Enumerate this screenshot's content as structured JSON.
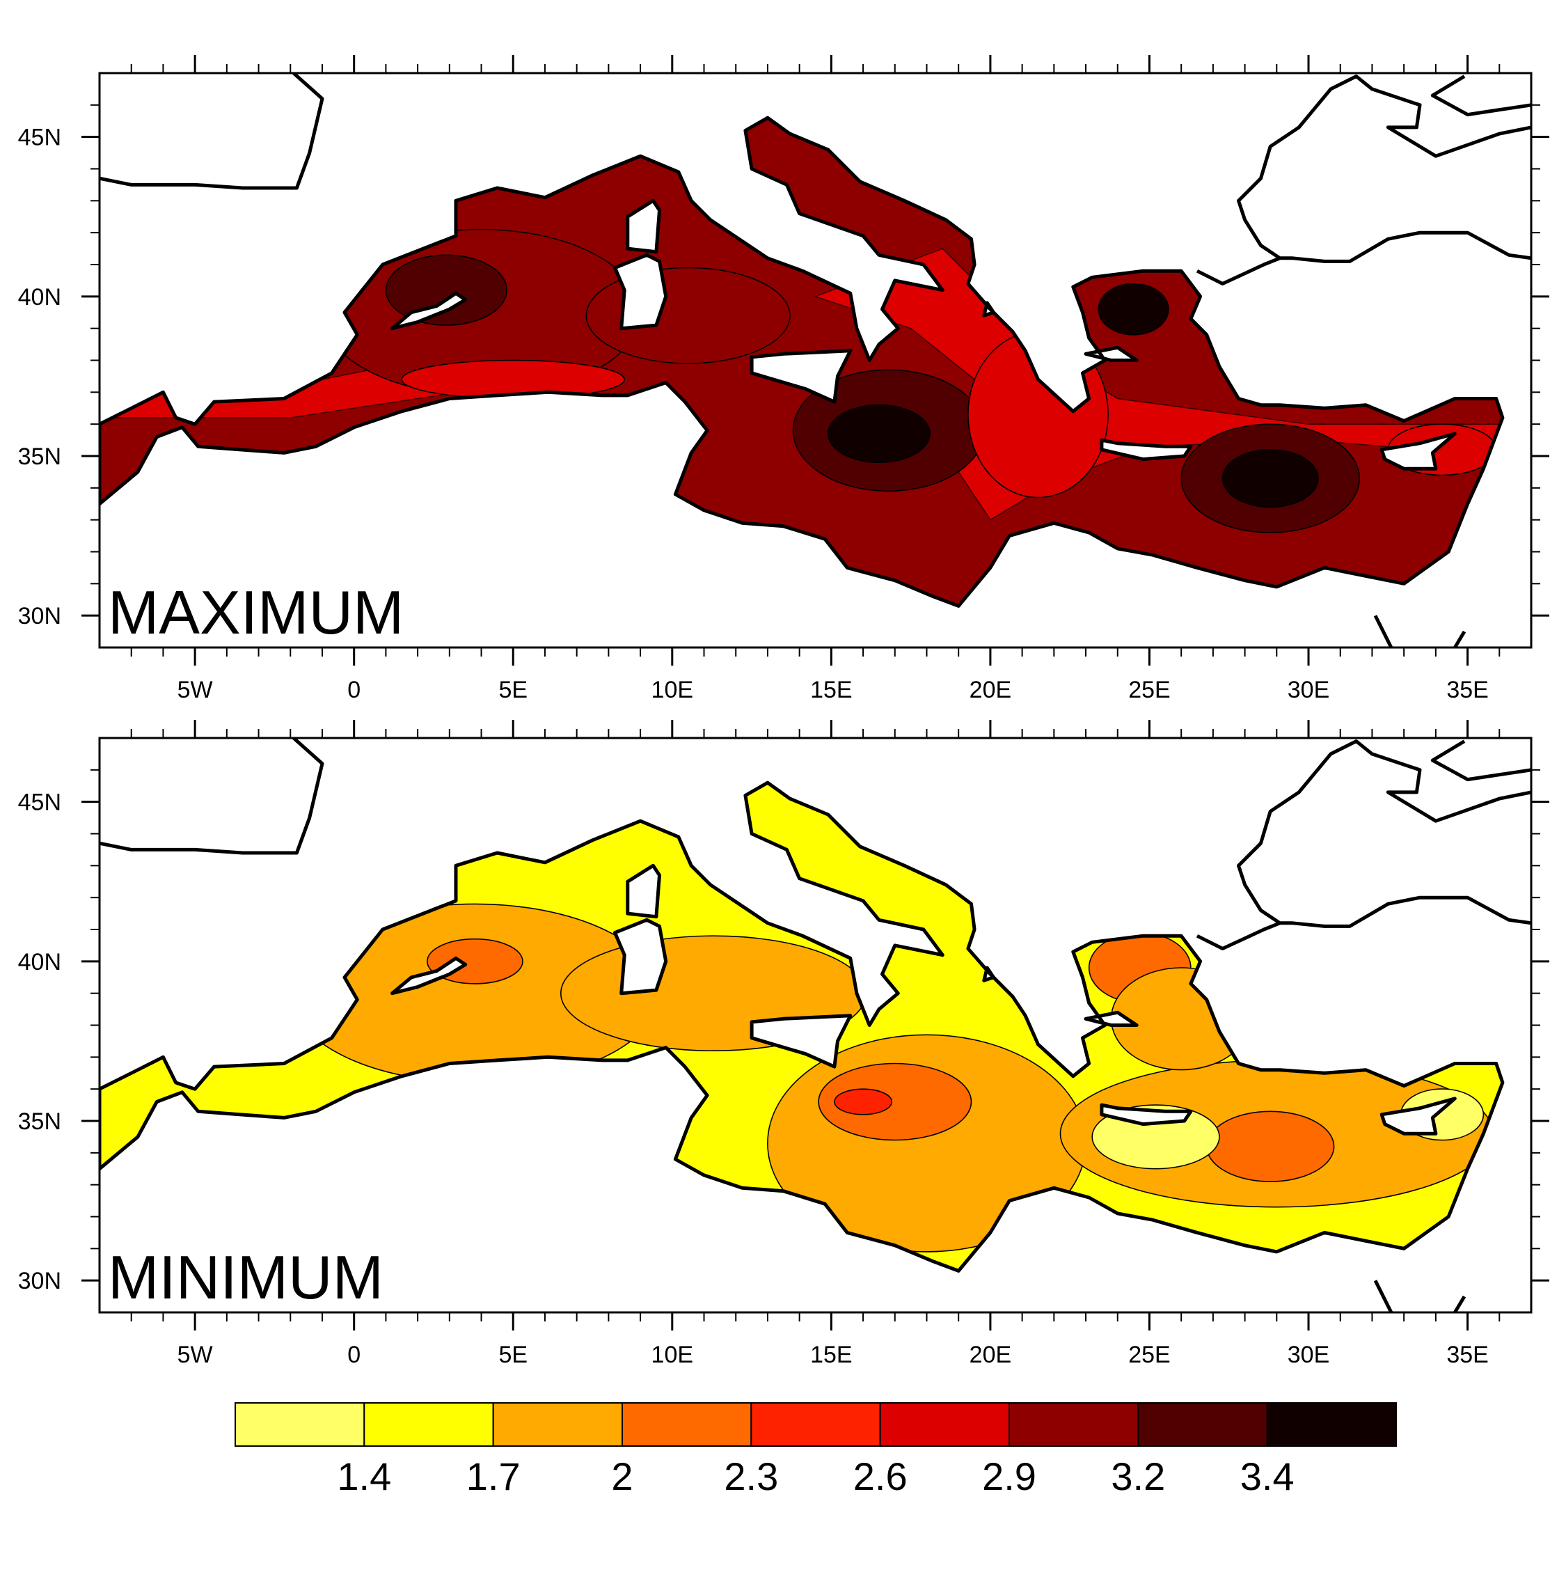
{
  "panels": [
    {
      "id": "maximum",
      "label": "MAXIMUM",
      "fields": [
        {
          "bin": 6,
          "lon": 4.0,
          "lat": 39.5,
          "rx": 5.0,
          "ry": 2.6
        },
        {
          "bin": 7,
          "lon": 2.9,
          "lat": 40.2,
          "rx": 1.9,
          "ry": 1.1
        },
        {
          "bin": 6,
          "lon": 10.5,
          "lat": 39.4,
          "rx": 3.2,
          "ry": 1.5
        },
        {
          "bin": 7,
          "lon": 16.8,
          "lat": 35.8,
          "rx": 3.0,
          "ry": 1.9
        },
        {
          "bin": 8,
          "lon": 16.5,
          "lat": 35.7,
          "rx": 1.6,
          "ry": 0.9
        },
        {
          "bin": 7,
          "lon": 28.8,
          "lat": 34.3,
          "rx": 2.8,
          "ry": 1.7
        },
        {
          "bin": 8,
          "lon": 28.8,
          "lat": 34.3,
          "rx": 1.5,
          "ry": 0.9
        },
        {
          "bin": 8,
          "lon": 24.5,
          "lat": 39.6,
          "rx": 1.1,
          "ry": 0.8
        },
        {
          "bin": 5,
          "lon": 21.5,
          "lat": 36.3,
          "rx": 2.2,
          "ry": 2.6
        },
        {
          "bin": 5,
          "lon": 5.0,
          "lat": 37.4,
          "rx": 3.5,
          "ry": 0.6
        },
        {
          "bin": 5,
          "lon": 34.2,
          "lat": 35.2,
          "rx": 1.7,
          "ry": 0.8
        }
      ]
    },
    {
      "id": "minimum",
      "label": "MINIMUM",
      "fields": [
        {
          "bin": 2,
          "lon": 3.8,
          "lat": 39.0,
          "rx": 5.8,
          "ry": 2.8
        },
        {
          "bin": 3,
          "lon": 3.8,
          "lat": 40.0,
          "rx": 1.5,
          "ry": 0.7
        },
        {
          "bin": 2,
          "lon": 11.3,
          "lat": 39.0,
          "rx": 4.8,
          "ry": 1.8
        },
        {
          "bin": 2,
          "lon": 18.0,
          "lat": 34.3,
          "rx": 5.0,
          "ry": 3.4
        },
        {
          "bin": 3,
          "lon": 17.0,
          "lat": 35.6,
          "rx": 2.4,
          "ry": 1.2
        },
        {
          "bin": 4,
          "lon": 16.0,
          "lat": 35.6,
          "rx": 0.9,
          "ry": 0.4
        },
        {
          "bin": 2,
          "lon": 29.0,
          "lat": 34.6,
          "rx": 6.8,
          "ry": 2.3
        },
        {
          "bin": 3,
          "lon": 28.8,
          "lat": 34.2,
          "rx": 2.0,
          "ry": 1.1
        },
        {
          "bin": 0,
          "lon": 25.2,
          "lat": 34.5,
          "rx": 2.0,
          "ry": 1.0
        },
        {
          "bin": 0,
          "lon": 34.2,
          "lat": 35.2,
          "rx": 1.3,
          "ry": 0.8
        },
        {
          "bin": 3,
          "lon": 24.7,
          "lat": 39.8,
          "rx": 1.6,
          "ry": 1.1
        },
        {
          "bin": 2,
          "lon": 26.0,
          "lat": 38.2,
          "rx": 2.2,
          "ry": 1.6
        }
      ]
    }
  ],
  "axes": {
    "lon_range": [
      -8,
      37
    ],
    "lat_range": [
      29,
      47
    ],
    "x_ticks": [
      {
        "value": -5,
        "label": "5W"
      },
      {
        "value": 0,
        "label": "0"
      },
      {
        "value": 5,
        "label": "5E"
      },
      {
        "value": 10,
        "label": "10E"
      },
      {
        "value": 15,
        "label": "15E"
      },
      {
        "value": 20,
        "label": "20E"
      },
      {
        "value": 25,
        "label": "25E"
      },
      {
        "value": 30,
        "label": "30E"
      },
      {
        "value": 35,
        "label": "35E"
      }
    ],
    "y_ticks": [
      {
        "value": 30,
        "label": "30N"
      },
      {
        "value": 35,
        "label": "35N"
      },
      {
        "value": 40,
        "label": "40N"
      },
      {
        "value": 45,
        "label": "45N"
      }
    ]
  },
  "colorbar": {
    "colors": [
      "#ffff66",
      "#ffff00",
      "#ffaa00",
      "#ff6a00",
      "#ff2200",
      "#dd0000",
      "#8e0000",
      "#500000",
      "#100000"
    ],
    "labels": [
      "1.4",
      "1.7",
      "2",
      "2.3",
      "2.6",
      "2.9",
      "3.2",
      "3.4"
    ]
  },
  "styles": {
    "sea_base_max_bin": 6,
    "sea_band_max_bin": 5,
    "sea_base_min_bin": 1,
    "coast_color": "#000000"
  },
  "geography": {
    "sea": [
      [
        -8,
        36.0
      ],
      [
        -7,
        36.5
      ],
      [
        -6,
        37.0
      ],
      [
        -5.6,
        36.2
      ],
      [
        -5.0,
        36.0
      ],
      [
        -4.4,
        36.7
      ],
      [
        -2.2,
        36.8
      ],
      [
        -0.7,
        37.6
      ],
      [
        0.1,
        38.8
      ],
      [
        -0.3,
        39.5
      ],
      [
        0.9,
        41.0
      ],
      [
        3.2,
        41.9
      ],
      [
        3.2,
        43.0
      ],
      [
        4.5,
        43.4
      ],
      [
        6.0,
        43.1
      ],
      [
        7.5,
        43.8
      ],
      [
        9.0,
        44.4
      ],
      [
        10.2,
        43.9
      ],
      [
        10.6,
        43.0
      ],
      [
        11.2,
        42.4
      ],
      [
        12.4,
        41.6
      ],
      [
        13.0,
        41.2
      ],
      [
        14.1,
        40.8
      ],
      [
        15.6,
        40.1
      ],
      [
        15.8,
        39.0
      ],
      [
        16.2,
        38.0
      ],
      [
        16.5,
        38.5
      ],
      [
        17.1,
        39.0
      ],
      [
        16.6,
        39.6
      ],
      [
        17.0,
        40.5
      ],
      [
        18.5,
        40.2
      ],
      [
        17.9,
        41.0
      ],
      [
        16.5,
        41.3
      ],
      [
        16.0,
        41.9
      ],
      [
        14.0,
        42.6
      ],
      [
        13.6,
        43.5
      ],
      [
        12.5,
        44.0
      ],
      [
        12.3,
        45.2
      ],
      [
        13.0,
        45.6
      ],
      [
        13.7,
        45.1
      ],
      [
        14.9,
        44.6
      ],
      [
        15.9,
        43.6
      ],
      [
        17.3,
        43.0
      ],
      [
        18.6,
        42.4
      ],
      [
        19.4,
        41.8
      ],
      [
        19.5,
        41.0
      ],
      [
        19.3,
        40.4
      ],
      [
        20.0,
        39.6
      ],
      [
        20.7,
        38.9
      ],
      [
        21.1,
        38.3
      ],
      [
        21.5,
        37.4
      ],
      [
        22.6,
        36.4
      ],
      [
        23.1,
        36.8
      ],
      [
        22.9,
        37.6
      ],
      [
        23.6,
        38.0
      ],
      [
        23.1,
        38.7
      ],
      [
        22.9,
        39.5
      ],
      [
        22.6,
        40.3
      ],
      [
        23.2,
        40.6
      ],
      [
        24.8,
        40.8
      ],
      [
        26.0,
        40.8
      ],
      [
        26.6,
        40.0
      ],
      [
        26.3,
        39.3
      ],
      [
        26.8,
        38.8
      ],
      [
        27.2,
        37.8
      ],
      [
        27.8,
        36.8
      ],
      [
        28.5,
        36.6
      ],
      [
        29.1,
        36.6
      ],
      [
        30.5,
        36.5
      ],
      [
        31.8,
        36.6
      ],
      [
        33.0,
        36.1
      ],
      [
        34.6,
        36.8
      ],
      [
        35.9,
        36.8
      ],
      [
        36.1,
        36.2
      ],
      [
        35.8,
        35.4
      ],
      [
        35.5,
        34.6
      ],
      [
        35.0,
        33.5
      ],
      [
        34.4,
        32.0
      ],
      [
        33.0,
        31.0
      ],
      [
        32.0,
        31.2
      ],
      [
        30.5,
        31.5
      ],
      [
        29.0,
        30.9
      ],
      [
        28.0,
        31.1
      ],
      [
        26.5,
        31.5
      ],
      [
        25.1,
        31.9
      ],
      [
        24.0,
        32.1
      ],
      [
        23.1,
        32.6
      ],
      [
        22.0,
        32.9
      ],
      [
        20.6,
        32.5
      ],
      [
        20.0,
        31.5
      ],
      [
        19.0,
        30.3
      ],
      [
        18.2,
        30.6
      ],
      [
        17.0,
        31.1
      ],
      [
        15.5,
        31.5
      ],
      [
        14.8,
        32.4
      ],
      [
        13.5,
        32.8
      ],
      [
        12.2,
        32.9
      ],
      [
        11.0,
        33.3
      ],
      [
        10.1,
        33.8
      ],
      [
        10.6,
        35.1
      ],
      [
        11.1,
        35.8
      ],
      [
        10.4,
        36.7
      ],
      [
        9.8,
        37.3
      ],
      [
        8.6,
        36.9
      ],
      [
        7.8,
        36.9
      ],
      [
        6.1,
        37.0
      ],
      [
        4.5,
        36.9
      ],
      [
        3.0,
        36.8
      ],
      [
        1.5,
        36.4
      ],
      [
        0.0,
        35.9
      ],
      [
        -1.2,
        35.3
      ],
      [
        -2.2,
        35.1
      ],
      [
        -3.6,
        35.2
      ],
      [
        -4.9,
        35.3
      ],
      [
        -5.4,
        35.9
      ],
      [
        -6.2,
        35.6
      ],
      [
        -6.8,
        34.5
      ],
      [
        -8,
        33.5
      ]
    ],
    "islands": [
      [
        [
          1.2,
          39.0
        ],
        [
          2.0,
          39.2
        ],
        [
          3.0,
          39.6
        ],
        [
          3.5,
          39.9
        ],
        [
          3.2,
          40.1
        ],
        [
          2.6,
          39.7
        ],
        [
          1.8,
          39.5
        ]
      ],
      [
        [
          8.4,
          39.0
        ],
        [
          9.5,
          39.1
        ],
        [
          9.8,
          40.0
        ],
        [
          9.6,
          41.1
        ],
        [
          9.2,
          41.3
        ],
        [
          8.2,
          40.9
        ],
        [
          8.5,
          40.2
        ]
      ],
      [
        [
          8.6,
          41.5
        ],
        [
          9.5,
          41.4
        ],
        [
          9.6,
          42.7
        ],
        [
          9.4,
          43.0
        ],
        [
          8.6,
          42.5
        ]
      ],
      [
        [
          12.5,
          38.1
        ],
        [
          13.5,
          38.2
        ],
        [
          15.6,
          38.3
        ],
        [
          15.2,
          37.5
        ],
        [
          15.1,
          36.7
        ],
        [
          14.2,
          37.1
        ],
        [
          12.5,
          37.6
        ]
      ],
      [
        [
          23.5,
          35.5
        ],
        [
          24.0,
          35.4
        ],
        [
          25.5,
          35.3
        ],
        [
          26.3,
          35.3
        ],
        [
          26.1,
          35.0
        ],
        [
          24.8,
          34.9
        ],
        [
          23.5,
          35.2
        ]
      ],
      [
        [
          32.3,
          35.2
        ],
        [
          33.5,
          35.4
        ],
        [
          34.6,
          35.7
        ],
        [
          33.9,
          35.1
        ],
        [
          34.0,
          34.6
        ],
        [
          33.0,
          34.6
        ],
        [
          32.4,
          34.9
        ]
      ],
      [
        [
          19.9,
          39.8
        ],
        [
          20.1,
          39.5
        ],
        [
          19.8,
          39.4
        ]
      ],
      [
        [
          23.0,
          38.2
        ],
        [
          24.0,
          38.4
        ],
        [
          24.6,
          38.0
        ],
        [
          23.8,
          38.0
        ]
      ]
    ],
    "coast_extra": [
      [
        [
          -8,
          43.7
        ],
        [
          -7,
          43.5
        ],
        [
          -5,
          43.5
        ],
        [
          -3.5,
          43.4
        ],
        [
          -1.8,
          43.4
        ],
        [
          -1.4,
          44.5
        ],
        [
          -1.0,
          46.2
        ],
        [
          -1.9,
          47.0
        ]
      ],
      [
        [
          26.5,
          40.8
        ],
        [
          27.3,
          40.4
        ],
        [
          28.6,
          41.0
        ],
        [
          29.1,
          41.2
        ],
        [
          29.5,
          41.2
        ],
        [
          30.5,
          41.1
        ],
        [
          31.3,
          41.1
        ],
        [
          32.5,
          41.8
        ],
        [
          33.5,
          42.0
        ],
        [
          35.0,
          42.0
        ],
        [
          36.3,
          41.3
        ],
        [
          37,
          41.2
        ]
      ],
      [
        [
          29.1,
          41.2
        ],
        [
          28.5,
          41.6
        ],
        [
          28.0,
          42.4
        ],
        [
          27.8,
          43.0
        ],
        [
          28.5,
          43.7
        ],
        [
          28.8,
          44.7
        ],
        [
          29.7,
          45.3
        ],
        [
          30.7,
          46.5
        ],
        [
          31.5,
          46.9
        ],
        [
          32.0,
          46.5
        ],
        [
          33.5,
          46.0
        ],
        [
          33.4,
          45.3
        ],
        [
          32.5,
          45.3
        ],
        [
          34.0,
          44.4
        ],
        [
          36.0,
          45.1
        ],
        [
          37,
          45.3
        ]
      ],
      [
        [
          34.9,
          46.9
        ],
        [
          33.9,
          46.3
        ],
        [
          35.0,
          45.7
        ],
        [
          37,
          46.0
        ]
      ],
      [
        [
          32.1,
          30.0
        ],
        [
          32.6,
          29.0
        ]
      ],
      [
        [
          34.9,
          29.5
        ],
        [
          34.6,
          29.0
        ]
      ]
    ]
  }
}
